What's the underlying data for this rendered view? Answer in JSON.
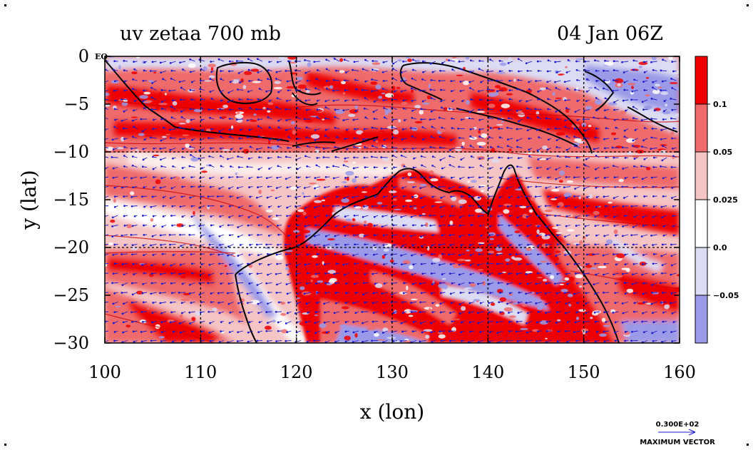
{
  "title_left": "uv zetaa 700 mb",
  "title_right": "04 Jan 06Z",
  "equator_label": "EQ",
  "x_axis": {
    "label": "x (lon)",
    "ticks": [
      "100",
      "110",
      "120",
      "130",
      "140",
      "150",
      "160"
    ]
  },
  "y_axis": {
    "label": "y (lat)",
    "ticks": [
      "0",
      "−5",
      "−10",
      "−15",
      "−20",
      "−25",
      "−30"
    ]
  },
  "colorbar": {
    "labels": [
      "0.1",
      "0.05",
      "0.025",
      "0.0",
      "−0.05"
    ],
    "colors": [
      "#ee0000",
      "#ef6a6a",
      "#f5c4c4",
      "#ffffff",
      "#dcdcf4",
      "#9a9ae8"
    ]
  },
  "vector_key": {
    "value": "0.300E+02",
    "caption": "MAXIMUM VECTOR"
  },
  "map_data": {
    "type": "lat-lon filled contour with wind vectors",
    "variable": "uv zetaa",
    "level": "700 mb",
    "time": "04 Jan 06Z",
    "lon_range": [
      100,
      160
    ],
    "lat_range": [
      -30,
      0
    ],
    "grid_lon": [
      110,
      120,
      130,
      140,
      150
    ],
    "grid_lat": [
      -10,
      -20
    ],
    "contour_levels": [
      -0.05,
      0.0,
      0.025,
      0.05,
      0.1
    ],
    "colors": {
      "gt_0.1": "#ee0000",
      "0.05_0.1": "#ef6a6a",
      "0.025_0.05": "#f5c4c4",
      "0.0_0.025": "#ffffff",
      "-0.05_0.0": "#dcdcf4",
      "lt_-0.05": "#9a9ae8",
      "contour_line": "#cc0000",
      "coast": "#000000",
      "vector": "#1a1acc"
    }
  }
}
